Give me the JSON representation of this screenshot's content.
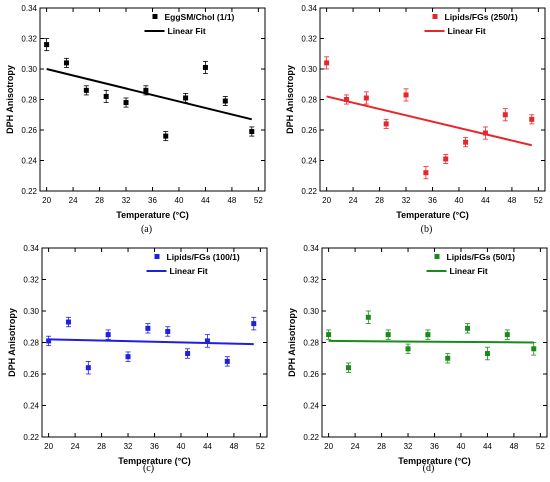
{
  "chart_data": [
    {
      "type": "scatter",
      "caption": "(a)",
      "xlabel": "Temperature (°C)",
      "ylabel": "DPH Anisotropy",
      "xlim": [
        19,
        53
      ],
      "ylim": [
        0.22,
        0.34
      ],
      "xticks": [
        20,
        24,
        28,
        32,
        36,
        40,
        44,
        48,
        52
      ],
      "yticks": [
        0.22,
        0.24,
        0.26,
        0.28,
        0.3,
        0.32,
        0.34
      ],
      "grid": false,
      "legend_position": "top-right",
      "color": "#000000",
      "series": [
        {
          "name": "EggSM/Chol (1/1)",
          "x": [
            20,
            23,
            26,
            29,
            32,
            35,
            38,
            41,
            44,
            47,
            51
          ],
          "y": [
            0.316,
            0.304,
            0.286,
            0.282,
            0.278,
            0.286,
            0.256,
            0.281,
            0.301,
            0.279,
            0.259
          ],
          "err": [
            0.004,
            0.003,
            0.003,
            0.004,
            0.003,
            0.003,
            0.003,
            0.003,
            0.004,
            0.003,
            0.003
          ]
        },
        {
          "name": "Linear Fit",
          "x": [
            20,
            51
          ],
          "y": [
            0.3,
            0.267
          ]
        }
      ]
    },
    {
      "type": "scatter",
      "caption": "(b)",
      "xlabel": "Temperature (°C)",
      "ylabel": "DPH Anisotropy",
      "xlim": [
        19,
        53
      ],
      "ylim": [
        0.22,
        0.34
      ],
      "xticks": [
        20,
        24,
        28,
        32,
        36,
        40,
        44,
        48,
        52
      ],
      "yticks": [
        0.22,
        0.24,
        0.26,
        0.28,
        0.3,
        0.32,
        0.34
      ],
      "grid": false,
      "legend_position": "top-right",
      "color": "#e8262b",
      "series": [
        {
          "name": "Lipids/FGs (250/1)",
          "x": [
            20,
            23,
            26,
            29,
            32,
            35,
            38,
            41,
            44,
            47,
            51
          ],
          "y": [
            0.304,
            0.28,
            0.281,
            0.264,
            0.283,
            0.232,
            0.241,
            0.252,
            0.258,
            0.27,
            0.267
          ],
          "err": [
            0.004,
            0.003,
            0.004,
            0.003,
            0.004,
            0.004,
            0.003,
            0.003,
            0.004,
            0.004,
            0.003
          ]
        },
        {
          "name": "Linear Fit",
          "x": [
            20,
            51
          ],
          "y": [
            0.282,
            0.25
          ]
        }
      ]
    },
    {
      "type": "scatter",
      "caption": "(c)",
      "xlabel": "Temperature (°C)",
      "ylabel": "DPH Anisotropy",
      "xlim": [
        19,
        53
      ],
      "ylim": [
        0.22,
        0.34
      ],
      "xticks": [
        20,
        24,
        28,
        32,
        36,
        40,
        44,
        48,
        52
      ],
      "yticks": [
        0.22,
        0.24,
        0.26,
        0.28,
        0.3,
        0.32,
        0.34
      ],
      "grid": false,
      "legend_position": "top-right",
      "color": "#1f1fe0",
      "series": [
        {
          "name": "Lipids/FGs (100/1)",
          "x": [
            20,
            23,
            26,
            29,
            32,
            35,
            38,
            41,
            44,
            47,
            51
          ],
          "y": [
            0.281,
            0.293,
            0.264,
            0.285,
            0.271,
            0.289,
            0.287,
            0.273,
            0.281,
            0.268,
            0.292
          ],
          "err": [
            0.003,
            0.003,
            0.004,
            0.003,
            0.003,
            0.003,
            0.003,
            0.003,
            0.004,
            0.003,
            0.004
          ]
        },
        {
          "name": "Linear Fit",
          "x": [
            20,
            51
          ],
          "y": [
            0.282,
            0.279
          ]
        }
      ]
    },
    {
      "type": "scatter",
      "caption": "(d)",
      "xlabel": "Temperature (°C)",
      "ylabel": "DPH Anisotropy",
      "xlim": [
        19,
        53
      ],
      "ylim": [
        0.22,
        0.34
      ],
      "xticks": [
        20,
        24,
        28,
        32,
        36,
        40,
        44,
        48,
        52
      ],
      "yticks": [
        0.22,
        0.24,
        0.26,
        0.28,
        0.3,
        0.32,
        0.34
      ],
      "grid": false,
      "legend_position": "top-right",
      "color": "#1b8a1b",
      "series": [
        {
          "name": "Lipids/FGs (50/1)",
          "x": [
            20,
            23,
            26,
            29,
            32,
            35,
            38,
            41,
            44,
            47,
            51
          ],
          "y": [
            0.285,
            0.264,
            0.296,
            0.285,
            0.276,
            0.285,
            0.27,
            0.289,
            0.273,
            0.285,
            0.276
          ],
          "err": [
            0.003,
            0.003,
            0.004,
            0.003,
            0.003,
            0.003,
            0.003,
            0.003,
            0.004,
            0.003,
            0.004
          ]
        },
        {
          "name": "Linear Fit",
          "x": [
            20,
            51
          ],
          "y": [
            0.281,
            0.28
          ]
        }
      ]
    }
  ]
}
